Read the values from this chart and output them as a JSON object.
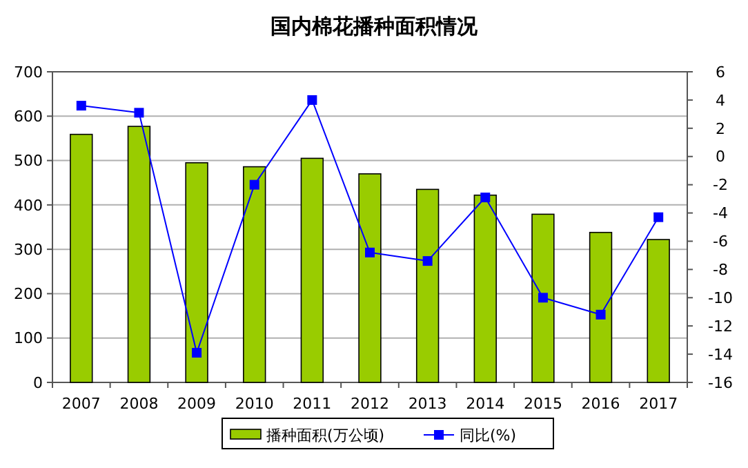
{
  "chart_data": {
    "type": "bar",
    "title": "国内棉花播种面积情况",
    "categories": [
      "2007",
      "2008",
      "2009",
      "2010",
      "2011",
      "2012",
      "2013",
      "2014",
      "2015",
      "2016",
      "2017"
    ],
    "series": [
      {
        "name": "播种面积(万公顷)",
        "color": "#99cc00",
        "values": [
          559,
          577,
          495,
          486,
          505,
          470,
          435,
          422,
          379,
          338,
          322
        ]
      },
      {
        "name": "同比(%)",
        "type": "line",
        "axis": "y2",
        "color": "#0000ff",
        "values": [
          3.6,
          3.1,
          -13.9,
          -2.0,
          4.0,
          -6.8,
          -7.4,
          -2.9,
          -10.0,
          -11.2,
          -4.3
        ]
      }
    ],
    "ylim": [
      0,
      700
    ],
    "yticks": [
      0,
      100,
      200,
      300,
      400,
      500,
      600,
      700
    ],
    "y2lim": [
      -16,
      6
    ],
    "y2ticks": [
      -16,
      -14,
      -12,
      -10,
      -8,
      -6,
      -4,
      -2,
      0,
      2,
      4,
      6
    ],
    "grid": "y",
    "legend": "bottom",
    "marker": "square",
    "line_style": "solid"
  }
}
